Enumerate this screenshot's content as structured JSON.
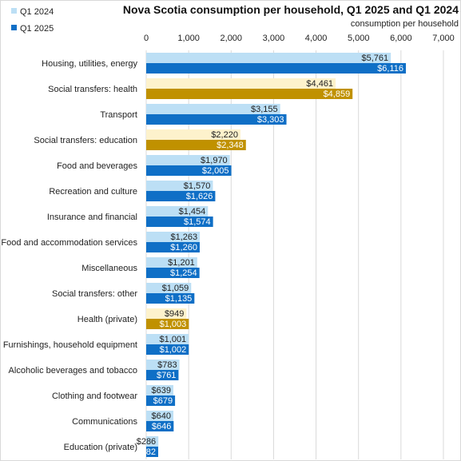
{
  "chart_data": {
    "type": "bar",
    "orientation": "horizontal",
    "title": "Nova Scotia consumption  per household,  Q1 2025 and Q1 2024",
    "subtitle": "consumption per household",
    "xlim": [
      0,
      7000
    ],
    "xticks": [
      "0",
      "1,000",
      "2,000",
      "3,000",
      "4,000",
      "5,000",
      "6,000",
      "7,000"
    ],
    "xtick_values": [
      0,
      1000,
      2000,
      3000,
      4000,
      5000,
      6000,
      7000
    ],
    "grid": true,
    "legend_position": "top-left",
    "categories": [
      "Housing, utilities, energy",
      "Social transfers: health",
      "Transport",
      "Social transfers: education",
      "Food and beverages",
      "Recreation and culture",
      "Insurance and financial",
      "Food and accommodation services",
      "Miscellaneous",
      "Social transfers: other",
      "Health (private)",
      "Furnishings, household equipment",
      "Alcoholic beverages and tobacco",
      "Clothing and footwear",
      "Communications",
      "Education (private)"
    ],
    "highlighted_categories": [
      "Social transfers: health",
      "Social transfers: education",
      "Health (private)"
    ],
    "series": [
      {
        "name": "Q1 2024",
        "color": "#bcdff5",
        "highlight_color": "#fdf2cc",
        "values": [
          5761,
          4461,
          3155,
          2220,
          1970,
          1570,
          1454,
          1263,
          1201,
          1059,
          949,
          1001,
          783,
          639,
          640,
          286
        ],
        "labels": [
          "$5,761",
          "$4,461",
          "$3,155",
          "$2,220",
          "$1,970",
          "$1,570",
          "$1,454",
          "$1,263",
          "$1,201",
          "$1,059",
          "$949",
          "$1,001",
          "$783",
          "$639",
          "$640",
          "$286"
        ]
      },
      {
        "name": "Q1 2025",
        "color": "#0f6fc6",
        "highlight_color": "#c09100",
        "values": [
          6116,
          4859,
          3303,
          2348,
          2005,
          1626,
          1574,
          1260,
          1254,
          1135,
          1003,
          1002,
          761,
          679,
          646,
          282
        ],
        "labels": [
          "$6,116",
          "$4,859",
          "$3,303",
          "$2,348",
          "$2,005",
          "$1,626",
          "$1,574",
          "$1,260",
          "$1,254",
          "$1,135",
          "$1,003",
          "$1,002",
          "$761",
          "$679",
          "$646",
          "$282"
        ]
      }
    ]
  }
}
